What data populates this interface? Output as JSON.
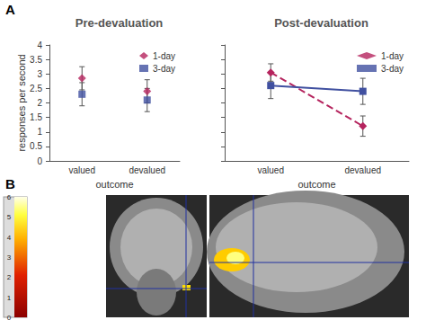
{
  "panel_labels": [
    "A",
    "B"
  ],
  "chart_data": [
    {
      "type": "scatter",
      "title": "Pre-devaluation",
      "x_label": "outcome",
      "y_label": "responses per second",
      "categories": [
        "valued",
        "devalued"
      ],
      "series": [
        {
          "name": "1-day",
          "color": "#b5245e",
          "marker": "diamond",
          "values": [
            2.85,
            2.4
          ],
          "errors": [
            0.4,
            0.4
          ]
        },
        {
          "name": "3-day",
          "color": "#4050a0",
          "marker": "square",
          "values": [
            2.3,
            2.1
          ],
          "errors": [
            0.4,
            0.4
          ]
        }
      ],
      "ylim": [
        0,
        4
      ],
      "yticks": [
        0,
        0.5,
        1,
        1.5,
        2,
        2.5,
        3,
        3.5,
        4
      ],
      "grid": false,
      "legend": "upper right"
    },
    {
      "type": "line",
      "title": "Post-devaluation",
      "x_label": "outcome",
      "categories": [
        "valued",
        "devalued"
      ],
      "series": [
        {
          "name": "1-day",
          "color": "#b5245e",
          "marker": "diamond",
          "line_style": "dashed",
          "values": [
            3.05,
            1.2
          ],
          "errors": [
            0.3,
            0.35
          ]
        },
        {
          "name": "3-day",
          "color": "#4050a0",
          "marker": "square",
          "line_style": "solid",
          "values": [
            2.6,
            2.4
          ],
          "errors": [
            0.45,
            0.45
          ]
        }
      ],
      "ylim": [
        0,
        4
      ],
      "yticks": [
        0,
        0.5,
        1,
        1.5,
        2,
        2.5,
        3,
        3.5,
        4
      ],
      "grid": false,
      "legend": "upper right",
      "tick_labels": "x"
    }
  ],
  "colorbar": {
    "range": [
      0,
      6
    ],
    "ticks": [
      0,
      1,
      2,
      3,
      4,
      5,
      6
    ]
  }
}
